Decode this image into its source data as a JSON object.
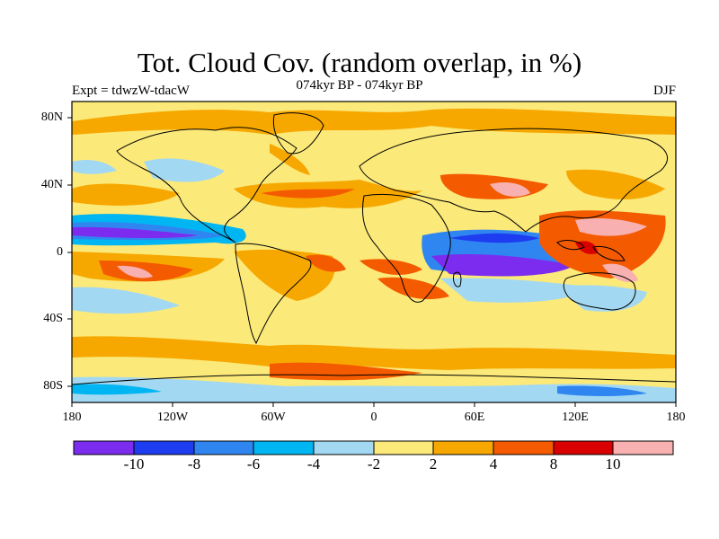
{
  "title": "Tot. Cloud Cov. (random overlap, in %)",
  "subtitle": "074kyr BP - 074kyr BP",
  "left_label": "Expt = tdwzW-tdacW",
  "right_label": "DJF",
  "map": {
    "lat_ticks": [
      "80N",
      "40N",
      "0",
      "40S",
      "80S"
    ],
    "lon_ticks": [
      "180",
      "120W",
      "60W",
      "0",
      "60E",
      "120E",
      "180"
    ]
  },
  "colorbar": {
    "colors": [
      "#7c2cee",
      "#1e3cf0",
      "#2f86f0",
      "#00b6f2",
      "#a3d8f2",
      "#fbe97a",
      "#f7a800",
      "#f45a00",
      "#d80000",
      "#f8b0b0"
    ],
    "tick_labels": [
      "-10",
      "-8",
      "-6",
      "-4",
      "-2",
      "2",
      "4",
      "8",
      "10"
    ]
  }
}
